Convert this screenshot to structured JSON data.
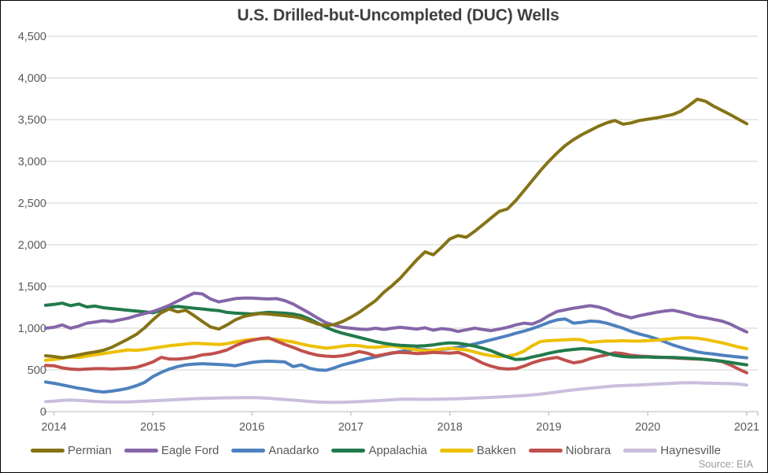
{
  "title": "U.S. Drilled-but-Uncompleted (DUC) Wells",
  "source_note": "Source: EIA",
  "colors": {
    "gridline": "#d9d9d9",
    "axis_line": "#c6c6c6",
    "tick_mark": "#bfbfbf",
    "title_text": "#404040",
    "axis_text": "#595959",
    "source_text": "#9c9c9c",
    "background": "#ffffff"
  },
  "chart_data": {
    "type": "line",
    "title": "U.S. Drilled-but-Uncompleted (DUC) Wells",
    "source_note": "Source: EIA",
    "grid": true,
    "legend_position": "bottom",
    "x_axis": {
      "tick_labels": [
        "2014",
        "2015",
        "2016",
        "2017",
        "2018",
        "2019",
        "2020",
        "2021"
      ],
      "interval": "monthly",
      "first_point": "2013-12",
      "last_point": "2021-01",
      "points_per_series": 86
    },
    "y_axis": {
      "min": 0,
      "max": 4500,
      "step": 500,
      "tick_labels": [
        "0",
        "500",
        "1,000",
        "1,500",
        "2,000",
        "2,500",
        "3,000",
        "3,500",
        "4,000",
        "4,500"
      ]
    },
    "series": [
      {
        "name": "Permian",
        "color": "#857315",
        "values": [
          670,
          660,
          645,
          660,
          680,
          700,
          715,
          735,
          770,
          820,
          870,
          925,
          1005,
          1100,
          1185,
          1230,
          1195,
          1215,
          1150,
          1080,
          1015,
          990,
          1040,
          1100,
          1140,
          1160,
          1175,
          1170,
          1160,
          1150,
          1140,
          1120,
          1085,
          1050,
          1030,
          1045,
          1080,
          1130,
          1190,
          1260,
          1330,
          1430,
          1510,
          1600,
          1710,
          1820,
          1915,
          1880,
          1970,
          2070,
          2110,
          2090,
          2160,
          2240,
          2320,
          2400,
          2430,
          2530,
          2650,
          2770,
          2890,
          3000,
          3100,
          3190,
          3260,
          3320,
          3370,
          3420,
          3460,
          3490,
          3445,
          3460,
          3490,
          3505,
          3520,
          3540,
          3560,
          3600,
          3670,
          3745,
          3720,
          3660,
          3610,
          3560,
          3505,
          3450
        ]
      },
      {
        "name": "Eagle Ford",
        "color": "#8566a8",
        "values": [
          1000,
          1010,
          1040,
          1000,
          1025,
          1060,
          1075,
          1090,
          1080,
          1100,
          1120,
          1150,
          1175,
          1200,
          1235,
          1275,
          1325,
          1375,
          1420,
          1410,
          1350,
          1315,
          1335,
          1355,
          1360,
          1360,
          1355,
          1350,
          1355,
          1330,
          1290,
          1235,
          1180,
          1120,
          1065,
          1035,
          1010,
          1000,
          990,
          985,
          1000,
          985,
          1000,
          1010,
          1000,
          990,
          1005,
          975,
          995,
          985,
          960,
          980,
          1000,
          985,
          970,
          990,
          1010,
          1040,
          1060,
          1050,
          1090,
          1150,
          1200,
          1220,
          1240,
          1255,
          1270,
          1255,
          1225,
          1180,
          1150,
          1125,
          1150,
          1170,
          1190,
          1205,
          1215,
          1195,
          1170,
          1140,
          1125,
          1105,
          1085,
          1050,
          1000,
          955
        ]
      },
      {
        "name": "Anadarko",
        "color": "#4e81bd",
        "values": [
          355,
          340,
          320,
          300,
          280,
          265,
          245,
          235,
          245,
          260,
          280,
          310,
          350,
          420,
          470,
          510,
          540,
          560,
          570,
          575,
          570,
          565,
          560,
          550,
          570,
          590,
          600,
          605,
          600,
          595,
          540,
          560,
          520,
          500,
          495,
          525,
          560,
          585,
          610,
          635,
          655,
          680,
          700,
          720,
          740,
          750,
          740,
          730,
          745,
          755,
          770,
          790,
          810,
          835,
          860,
          885,
          910,
          940,
          965,
          995,
          1030,
          1070,
          1100,
          1110,
          1060,
          1070,
          1085,
          1080,
          1060,
          1030,
          1000,
          960,
          930,
          905,
          875,
          840,
          800,
          770,
          740,
          715,
          700,
          690,
          675,
          665,
          655,
          645
        ]
      },
      {
        "name": "Appalachia",
        "color": "#217a4b",
        "values": [
          1275,
          1285,
          1300,
          1270,
          1290,
          1255,
          1265,
          1245,
          1235,
          1225,
          1215,
          1205,
          1195,
          1185,
          1215,
          1250,
          1260,
          1250,
          1240,
          1230,
          1220,
          1210,
          1190,
          1180,
          1175,
          1170,
          1180,
          1190,
          1185,
          1180,
          1170,
          1150,
          1110,
          1060,
          1010,
          970,
          940,
          915,
          890,
          865,
          840,
          820,
          805,
          795,
          790,
          785,
          790,
          800,
          815,
          825,
          820,
          805,
          785,
          760,
          730,
          690,
          655,
          625,
          630,
          655,
          675,
          700,
          720,
          735,
          745,
          755,
          750,
          730,
          700,
          675,
          660,
          655,
          655,
          655,
          650,
          650,
          650,
          645,
          640,
          635,
          625,
          615,
          605,
          590,
          575,
          560
        ]
      },
      {
        "name": "Bakken",
        "color": "#edc001",
        "values": [
          615,
          625,
          640,
          655,
          650,
          665,
          680,
          695,
          710,
          725,
          740,
          735,
          745,
          760,
          775,
          790,
          800,
          810,
          820,
          815,
          810,
          805,
          815,
          835,
          855,
          865,
          870,
          875,
          865,
          850,
          835,
          810,
          790,
          775,
          760,
          770,
          785,
          795,
          790,
          775,
          770,
          780,
          790,
          775,
          755,
          740,
          730,
          735,
          750,
          760,
          750,
          740,
          715,
          690,
          670,
          660,
          665,
          685,
          725,
          790,
          840,
          850,
          855,
          860,
          865,
          860,
          830,
          840,
          845,
          845,
          850,
          845,
          845,
          850,
          855,
          865,
          875,
          885,
          885,
          880,
          865,
          845,
          825,
          800,
          775,
          755
        ]
      },
      {
        "name": "Niobrara",
        "color": "#c0504d",
        "values": [
          555,
          550,
          525,
          510,
          505,
          510,
          515,
          515,
          510,
          515,
          520,
          530,
          560,
          595,
          650,
          630,
          630,
          640,
          655,
          680,
          690,
          710,
          740,
          790,
          830,
          855,
          875,
          885,
          845,
          805,
          770,
          730,
          700,
          675,
          665,
          660,
          670,
          690,
          720,
          700,
          665,
          685,
          705,
          710,
          705,
          695,
          700,
          710,
          705,
          700,
          710,
          675,
          630,
          580,
          545,
          520,
          510,
          515,
          545,
          585,
          615,
          635,
          650,
          615,
          585,
          600,
          635,
          660,
          680,
          705,
          695,
          675,
          665,
          660,
          655,
          650,
          645,
          640,
          635,
          630,
          625,
          615,
          600,
          560,
          510,
          465
        ]
      },
      {
        "name": "Haynesville",
        "color": "#cabedd",
        "values": [
          120,
          125,
          135,
          140,
          135,
          128,
          122,
          118,
          116,
          115,
          116,
          120,
          125,
          130,
          135,
          140,
          145,
          150,
          155,
          158,
          160,
          162,
          165,
          166,
          167,
          168,
          165,
          160,
          152,
          145,
          138,
          130,
          122,
          116,
          112,
          110,
          112,
          116,
          120,
          125,
          130,
          136,
          142,
          148,
          150,
          148,
          146,
          148,
          150,
          152,
          155,
          158,
          162,
          166,
          170,
          175,
          180,
          186,
          192,
          200,
          210,
          222,
          235,
          248,
          260,
          270,
          280,
          290,
          300,
          308,
          312,
          316,
          320,
          325,
          330,
          335,
          340,
          344,
          346,
          345,
          342,
          340,
          338,
          336,
          330,
          318
        ]
      }
    ]
  }
}
